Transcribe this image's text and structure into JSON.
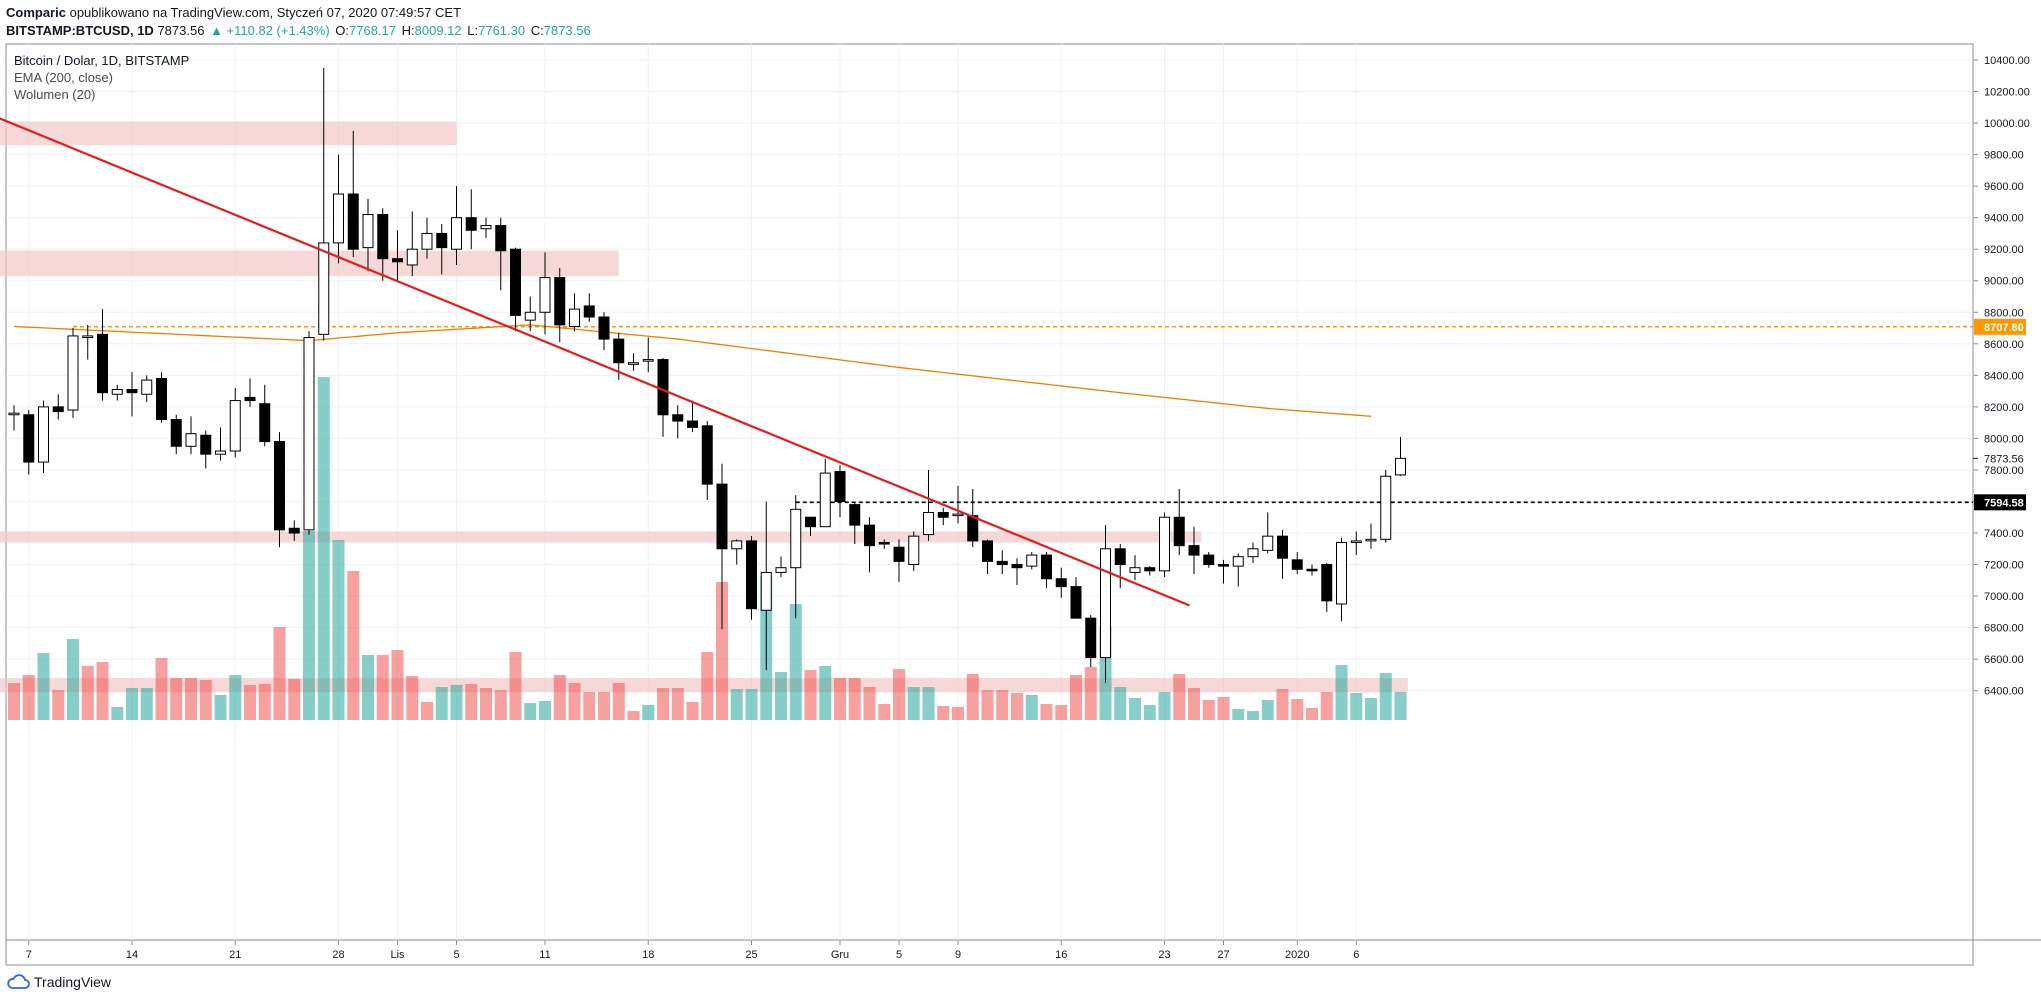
{
  "header": {
    "author": "Comparic",
    "published_text": "opublikowano na TradingView.com, Styczeń 07, 2020 07:49:57 CET",
    "symbol": "BITSTAMP:BTCUSD, 1D",
    "last": "7873.56",
    "change": "▲ +110.82 (+1.43%)",
    "o_label": "O:",
    "o_value": "7768.17",
    "h_label": "H:",
    "h_value": "8009.12",
    "l_label": "L:",
    "l_value": "7761.30",
    "c_label": "C:",
    "c_value": "7873.56"
  },
  "legend": {
    "title": "Bitcoin / Dolar, 1D, BITSTAMP",
    "ema": "EMA (200, close)",
    "volume": "Wolumen (20)"
  },
  "footer": {
    "brand": "TradingView"
  },
  "colors": {
    "candle_up_fill": "#ffffff",
    "candle_down_fill": "#000000",
    "volume_up": "#26a69a",
    "volume_down": "#ef5350",
    "ema": "#f57c00",
    "trendline": "#e51c1c",
    "zone": "#f4c7c9",
    "level_orange": "#ff9800"
  },
  "chart_data": {
    "type": "candlestick",
    "title": "Bitcoin / Dolar, 1D, BITSTAMP",
    "ylim": [
      6200,
      10600
    ],
    "y_ticks": [
      6400,
      6600,
      6800,
      7000,
      7200,
      7400,
      7600,
      7800,
      8000,
      8200,
      8400,
      8600,
      8800,
      9000,
      9200,
      9400,
      9600,
      9800,
      10000,
      10200,
      10400
    ],
    "x_tick_labels": [
      {
        "i": 1,
        "label": "7"
      },
      {
        "i": 8,
        "label": "14"
      },
      {
        "i": 15,
        "label": "21"
      },
      {
        "i": 22,
        "label": "28"
      },
      {
        "i": 26,
        "label": "Lis"
      },
      {
        "i": 30,
        "label": "5"
      },
      {
        "i": 36,
        "label": "11"
      },
      {
        "i": 43,
        "label": "18"
      },
      {
        "i": 50,
        "label": "25"
      },
      {
        "i": 56,
        "label": "Gru"
      },
      {
        "i": 60,
        "label": "5"
      },
      {
        "i": 64,
        "label": "9"
      },
      {
        "i": 71,
        "label": "16"
      },
      {
        "i": 78,
        "label": "23"
      },
      {
        "i": 82,
        "label": "27"
      },
      {
        "i": 87,
        "label": "2020"
      },
      {
        "i": 91,
        "label": "6"
      }
    ],
    "candles": [
      [
        8150,
        8210,
        8050,
        8160
      ],
      [
        8150,
        8180,
        7770,
        7850
      ],
      [
        7850,
        8240,
        7780,
        8200
      ],
      [
        8200,
        8280,
        8120,
        8170
      ],
      [
        8180,
        8700,
        8130,
        8650
      ],
      [
        8640,
        8720,
        8500,
        8650
      ],
      [
        8660,
        8820,
        8240,
        8290
      ],
      [
        8280,
        8340,
        8240,
        8310
      ],
      [
        8310,
        8420,
        8140,
        8290
      ],
      [
        8280,
        8400,
        8230,
        8370
      ],
      [
        8380,
        8420,
        8100,
        8120
      ],
      [
        8120,
        8150,
        7900,
        7950
      ],
      [
        7950,
        8140,
        7900,
        8030
      ],
      [
        8020,
        8050,
        7810,
        7900
      ],
      [
        7900,
        8070,
        7860,
        7920
      ],
      [
        7920,
        8320,
        7880,
        8240
      ],
      [
        8260,
        8380,
        8200,
        8240
      ],
      [
        8220,
        8340,
        7950,
        7980
      ],
      [
        7980,
        8040,
        7310,
        7420
      ],
      [
        7430,
        7480,
        7350,
        7400
      ],
      [
        7420,
        8680,
        7390,
        8640
      ],
      [
        8660,
        10350,
        8620,
        9240
      ],
      [
        9240,
        9800,
        9110,
        9550
      ],
      [
        9550,
        9950,
        9150,
        9200
      ],
      [
        9210,
        9520,
        9060,
        9420
      ],
      [
        9420,
        9460,
        9000,
        9140
      ],
      [
        9140,
        9320,
        8990,
        9120
      ],
      [
        9100,
        9440,
        9030,
        9200
      ],
      [
        9200,
        9400,
        9140,
        9300
      ],
      [
        9300,
        9360,
        9040,
        9210
      ],
      [
        9200,
        9600,
        9100,
        9400
      ],
      [
        9400,
        9580,
        9200,
        9320
      ],
      [
        9330,
        9400,
        9270,
        9350
      ],
      [
        9350,
        9400,
        8940,
        9190
      ],
      [
        9200,
        9210,
        8680,
        8780
      ],
      [
        8750,
        8900,
        8680,
        8800
      ],
      [
        8800,
        9180,
        8660,
        9020
      ],
      [
        9020,
        9080,
        8610,
        8720
      ],
      [
        8710,
        8920,
        8680,
        8820
      ],
      [
        8840,
        8920,
        8740,
        8770
      ],
      [
        8770,
        8800,
        8560,
        8630
      ],
      [
        8630,
        8670,
        8370,
        8480
      ],
      [
        8470,
        8540,
        8430,
        8480
      ],
      [
        8490,
        8640,
        8420,
        8500
      ],
      [
        8500,
        8510,
        8010,
        8150
      ],
      [
        8150,
        8210,
        8000,
        8110
      ],
      [
        8110,
        8240,
        8040,
        8070
      ],
      [
        8080,
        8110,
        7610,
        7710
      ],
      [
        7710,
        7840,
        6790,
        7300
      ],
      [
        7300,
        7360,
        7200,
        7350
      ],
      [
        7350,
        7380,
        6850,
        6920
      ],
      [
        6910,
        7600,
        6530,
        7150
      ],
      [
        7150,
        7250,
        7120,
        7180
      ],
      [
        7180,
        7640,
        6860,
        7550
      ],
      [
        7500,
        7500,
        7380,
        7440
      ],
      [
        7440,
        7870,
        7450,
        7780
      ],
      [
        7790,
        7830,
        7500,
        7600
      ],
      [
        7580,
        7590,
        7330,
        7450
      ],
      [
        7450,
        7500,
        7150,
        7320
      ],
      [
        7340,
        7360,
        7300,
        7330
      ],
      [
        7310,
        7360,
        7090,
        7220
      ],
      [
        7200,
        7410,
        7160,
        7380
      ],
      [
        7390,
        7800,
        7350,
        7530
      ],
      [
        7530,
        7560,
        7450,
        7500
      ],
      [
        7510,
        7700,
        7460,
        7520
      ],
      [
        7510,
        7680,
        7310,
        7350
      ],
      [
        7350,
        7360,
        7140,
        7220
      ],
      [
        7220,
        7290,
        7140,
        7200
      ],
      [
        7200,
        7240,
        7070,
        7180
      ],
      [
        7190,
        7280,
        7170,
        7260
      ],
      [
        7260,
        7280,
        7050,
        7110
      ],
      [
        7110,
        7180,
        6990,
        7060
      ],
      [
        7060,
        7120,
        6860,
        6860
      ],
      [
        6860,
        6880,
        6550,
        6610
      ],
      [
        6610,
        7450,
        6450,
        7300
      ],
      [
        7300,
        7330,
        7050,
        7200
      ],
      [
        7150,
        7260,
        7100,
        7180
      ],
      [
        7180,
        7190,
        7130,
        7160
      ],
      [
        7160,
        7530,
        7120,
        7500
      ],
      [
        7500,
        7680,
        7260,
        7320
      ],
      [
        7320,
        7440,
        7140,
        7260
      ],
      [
        7260,
        7280,
        7180,
        7200
      ],
      [
        7200,
        7230,
        7080,
        7190
      ],
      [
        7190,
        7270,
        7060,
        7250
      ],
      [
        7250,
        7340,
        7210,
        7300
      ],
      [
        7290,
        7530,
        7270,
        7380
      ],
      [
        7380,
        7420,
        7110,
        7240
      ],
      [
        7230,
        7280,
        7140,
        7170
      ],
      [
        7170,
        7200,
        7130,
        7160
      ],
      [
        7200,
        7210,
        6900,
        6970
      ],
      [
        6950,
        7370,
        6840,
        7340
      ],
      [
        7340,
        7410,
        7260,
        7350
      ],
      [
        7350,
        7460,
        7300,
        7360
      ],
      [
        7360,
        7800,
        7340,
        7760
      ],
      [
        7768.17,
        8009.12,
        7761.3,
        7873.56
      ]
    ],
    "volume": [
      [
        37,
        "d"
      ],
      [
        45,
        "d"
      ],
      [
        67,
        "u"
      ],
      [
        30,
        "d"
      ],
      [
        81,
        "u"
      ],
      [
        54,
        "d"
      ],
      [
        58,
        "d"
      ],
      [
        13,
        "u"
      ],
      [
        32,
        "u"
      ],
      [
        32,
        "u"
      ],
      [
        62,
        "d"
      ],
      [
        42,
        "d"
      ],
      [
        42,
        "d"
      ],
      [
        40,
        "d"
      ],
      [
        25,
        "u"
      ],
      [
        45,
        "u"
      ],
      [
        35,
        "d"
      ],
      [
        36,
        "d"
      ],
      [
        93,
        "d"
      ],
      [
        41,
        "d"
      ],
      [
        189,
        "u"
      ],
      [
        343,
        "u"
      ],
      [
        180,
        "u"
      ],
      [
        149,
        "d"
      ],
      [
        65,
        "u"
      ],
      [
        65,
        "d"
      ],
      [
        70,
        "d"
      ],
      [
        44,
        "d"
      ],
      [
        18,
        "d"
      ],
      [
        33,
        "u"
      ],
      [
        35,
        "u"
      ],
      [
        36,
        "d"
      ],
      [
        32,
        "d"
      ],
      [
        30,
        "d"
      ],
      [
        68,
        "d"
      ],
      [
        17,
        "u"
      ],
      [
        19,
        "u"
      ],
      [
        45,
        "d"
      ],
      [
        37,
        "d"
      ],
      [
        28,
        "d"
      ],
      [
        28,
        "d"
      ],
      [
        37,
        "d"
      ],
      [
        9,
        "d"
      ],
      [
        15,
        "u"
      ],
      [
        32,
        "d"
      ],
      [
        32,
        "d"
      ],
      [
        18,
        "d"
      ],
      [
        68,
        "d"
      ],
      [
        138,
        "d"
      ],
      [
        31,
        "u"
      ],
      [
        31,
        "u"
      ],
      [
        144,
        "u"
      ],
      [
        48,
        "u"
      ],
      [
        116,
        "u"
      ],
      [
        50,
        "d"
      ],
      [
        54,
        "u"
      ],
      [
        42,
        "d"
      ],
      [
        42,
        "d"
      ],
      [
        33,
        "d"
      ],
      [
        16,
        "d"
      ],
      [
        51,
        "d"
      ],
      [
        33,
        "u"
      ],
      [
        33,
        "u"
      ],
      [
        14,
        "d"
      ],
      [
        13,
        "d"
      ],
      [
        46,
        "d"
      ],
      [
        30,
        "d"
      ],
      [
        30,
        "d"
      ],
      [
        27,
        "d"
      ],
      [
        25,
        "u"
      ],
      [
        16,
        "d"
      ],
      [
        15,
        "d"
      ],
      [
        45,
        "d"
      ],
      [
        53,
        "d"
      ],
      [
        94,
        "u"
      ],
      [
        33,
        "u"
      ],
      [
        22,
        "u"
      ],
      [
        15,
        "u"
      ],
      [
        28,
        "u"
      ],
      [
        46,
        "d"
      ],
      [
        32,
        "d"
      ],
      [
        20,
        "d"
      ],
      [
        23,
        "d"
      ],
      [
        11,
        "u"
      ],
      [
        9,
        "u"
      ],
      [
        20,
        "u"
      ],
      [
        31,
        "d"
      ],
      [
        21,
        "d"
      ],
      [
        12,
        "d"
      ],
      [
        28,
        "d"
      ],
      [
        55,
        "u"
      ],
      [
        27,
        "u"
      ],
      [
        22,
        "u"
      ],
      [
        47,
        "u"
      ],
      [
        28,
        "u"
      ]
    ],
    "ema": [
      [
        0,
        8710
      ],
      [
        20,
        8620
      ],
      [
        26,
        8670
      ],
      [
        35,
        8720
      ],
      [
        45,
        8630
      ],
      [
        60,
        8450
      ],
      [
        75,
        8290
      ],
      [
        85,
        8190
      ],
      [
        92,
        8140
      ]
    ],
    "trendline": {
      "start": [
        -1.5,
        10050
      ],
      "end": [
        79.7,
        6940
      ]
    },
    "zones": [
      {
        "from": -1.5,
        "to": 30.0,
        "low": 9860,
        "high": 10010
      },
      {
        "from": -1.5,
        "to": 41.0,
        "low": 9030,
        "high": 9190
      },
      {
        "from": -1.5,
        "to": 80.5,
        "low": 7340,
        "high": 7410
      },
      {
        "from": -1.5,
        "to": 94.5,
        "low": 6390,
        "high": 6480
      }
    ],
    "levels": [
      {
        "name": "resistance",
        "value": 8707.8,
        "label": "8707.80",
        "from": 4,
        "style": "orange-dashed"
      },
      {
        "name": "support",
        "value": 7594.58,
        "label": "7594.58",
        "from": 53,
        "style": "black-dashed"
      },
      {
        "name": "last",
        "value": 7873.56,
        "label": "7873.56",
        "style": "last-price"
      }
    ]
  }
}
